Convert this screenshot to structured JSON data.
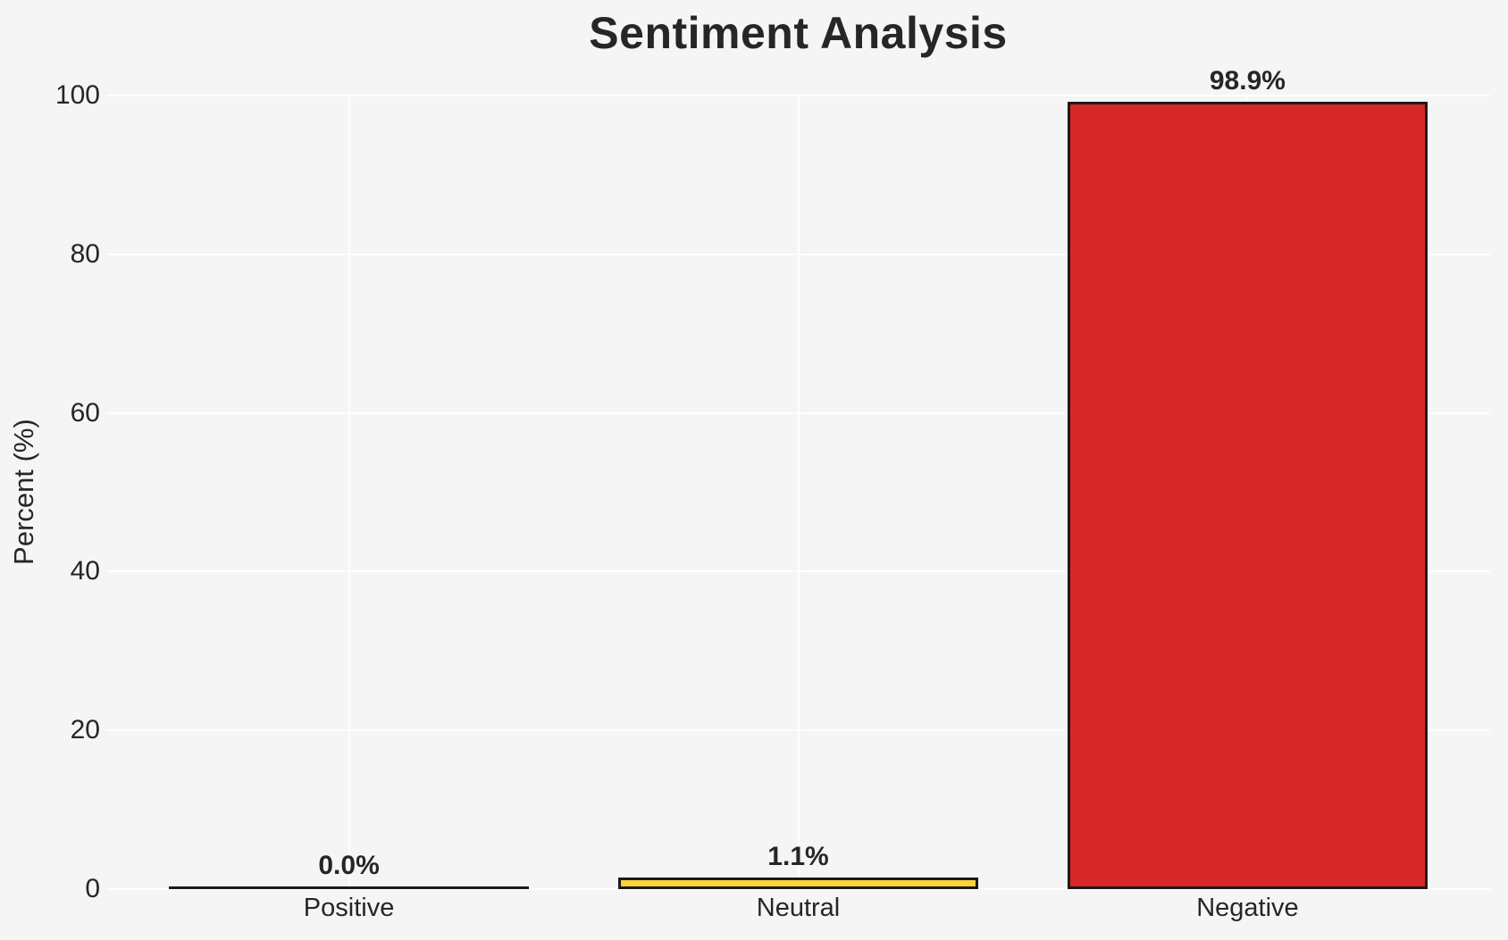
{
  "figure": {
    "background_color": "#f5f5f5",
    "grid_color": "#ffffff",
    "text_color": "#262626",
    "bar_edge_color": "#1a1a1a"
  },
  "chart_data": {
    "type": "bar",
    "title": "Sentiment Analysis",
    "xlabel": "",
    "ylabel": "Percent (%)",
    "categories": [
      "Positive",
      "Neutral",
      "Negative"
    ],
    "values": [
      0.0,
      1.1,
      98.9
    ],
    "value_labels": [
      "0.0%",
      "1.1%",
      "98.9%"
    ],
    "bar_colors": [
      "transparent",
      "#fcd33c",
      "#d62828"
    ],
    "yticks": [
      0,
      20,
      40,
      60,
      80,
      100
    ],
    "ytick_labels": [
      "0",
      "20",
      "40",
      "60",
      "80",
      "100"
    ],
    "ylim": [
      0,
      100
    ],
    "grid": true,
    "legend": "none"
  }
}
